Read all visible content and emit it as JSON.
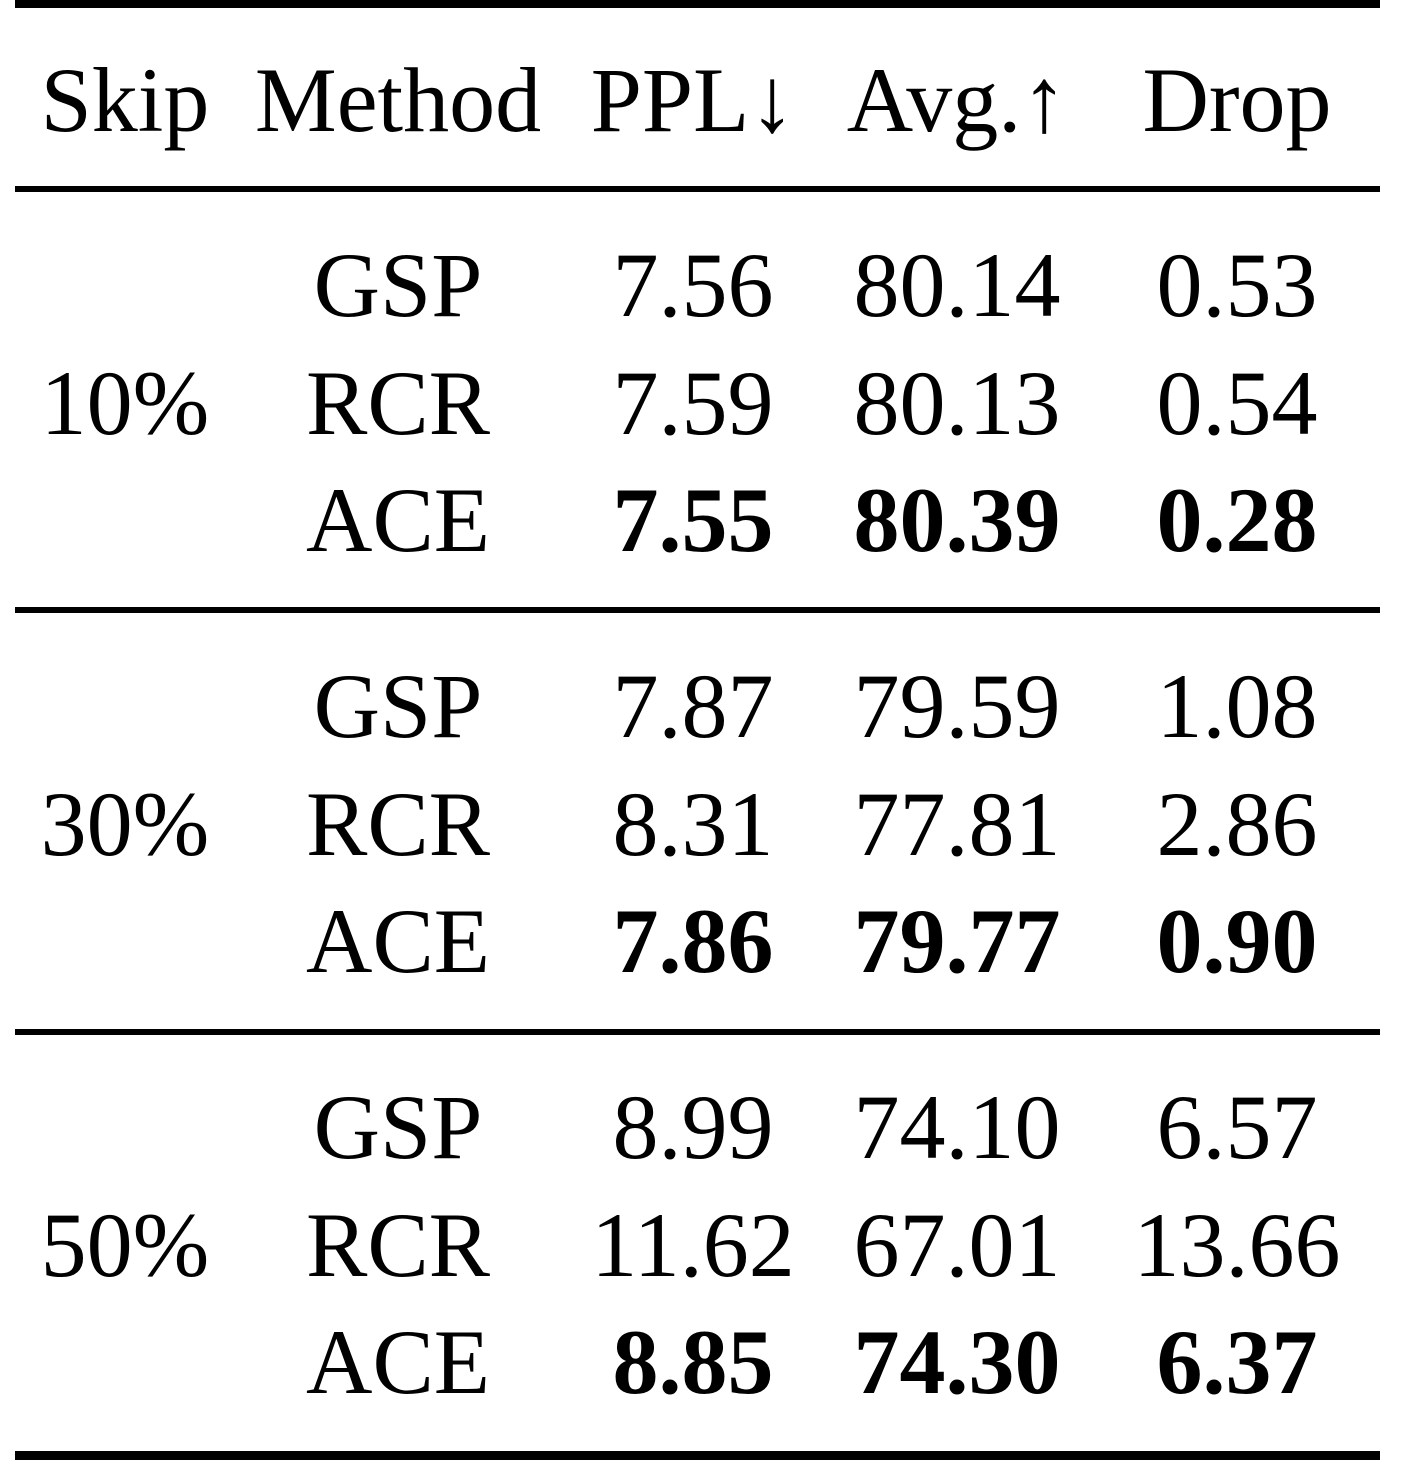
{
  "table": {
    "header": [
      "Skip",
      "Method",
      "PPL↓",
      "Avg.↑",
      "Drop"
    ],
    "groups": [
      {
        "skip": "10%",
        "rows": [
          [
            "GSP",
            "7.56",
            "80.14",
            "0.53"
          ],
          [
            "RCR",
            "7.59",
            "80.13",
            "0.54"
          ],
          [
            "ACE",
            "7.55",
            "80.39",
            "0.28"
          ]
        ]
      },
      {
        "skip": "30%",
        "rows": [
          [
            "GSP",
            "7.87",
            "79.59",
            "1.08"
          ],
          [
            "RCR",
            "8.31",
            "77.81",
            "2.86"
          ],
          [
            "ACE",
            "7.86",
            "79.77",
            "0.90"
          ]
        ]
      },
      {
        "skip": "50%",
        "rows": [
          [
            "GSP",
            "8.99",
            "74.10",
            "6.57"
          ],
          [
            "RCR",
            "11.62",
            "67.01",
            "13.66"
          ],
          [
            "ACE",
            "8.85",
            "74.30",
            "6.37"
          ]
        ]
      }
    ]
  }
}
